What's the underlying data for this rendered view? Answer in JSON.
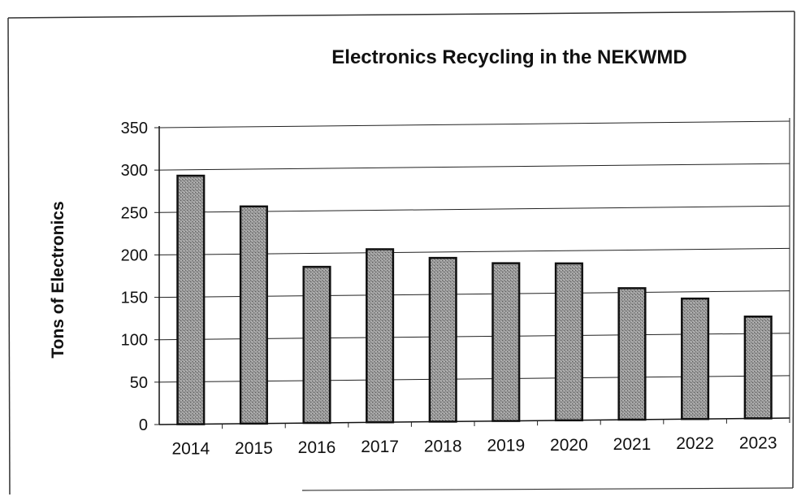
{
  "chart_data": {
    "type": "bar",
    "title": "Electronics Recycling in the NEKWMD",
    "xlabel": "",
    "ylabel": "Tons of Electronics",
    "categories": [
      "2014",
      "2015",
      "2016",
      "2017",
      "2018",
      "2019",
      "2020",
      "2021",
      "2022",
      "2023"
    ],
    "values": [
      293,
      256,
      184,
      204,
      193,
      186,
      185,
      155,
      142,
      120
    ],
    "ylim": [
      0,
      350
    ],
    "yticks": [
      0,
      50,
      100,
      150,
      200,
      250,
      300,
      350
    ],
    "grid": true,
    "legend": "none",
    "bar_color": "#8c8c8c",
    "bar_edge_color": "#111111"
  }
}
